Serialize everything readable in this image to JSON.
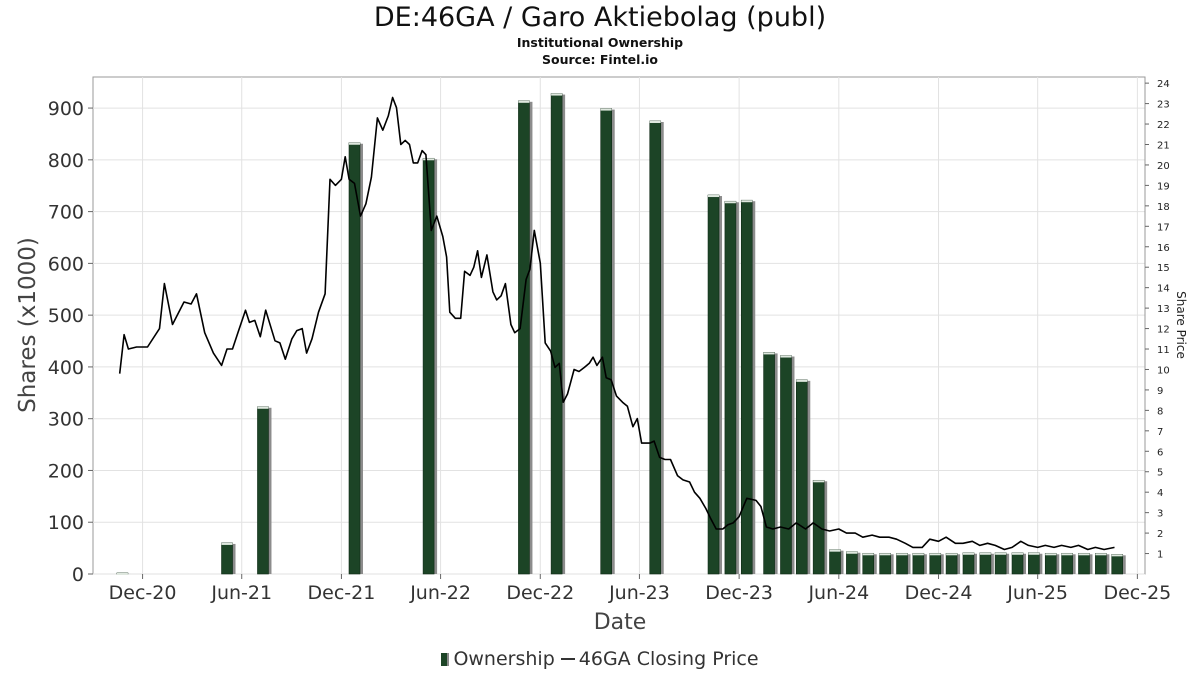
{
  "chart_data": {
    "type": "bar",
    "title": "DE:46GA / Garo Aktiebolag (publ)",
    "subtitle": "Institutional Ownership",
    "source": "Source: Fintel.io",
    "xlabel": "Date",
    "ylabel": "Shares (x1000)",
    "y2label": "Share Price",
    "ylim": [
      0,
      960
    ],
    "y2lim": [
      0,
      24.3
    ],
    "xlim": [
      "2020-09-01",
      "2025-12-15"
    ],
    "yticks": [
      0,
      100,
      200,
      300,
      400,
      500,
      600,
      700,
      800,
      900
    ],
    "y2ticks": [
      1,
      2,
      3,
      4,
      5,
      6,
      7,
      8,
      9,
      10,
      11,
      12,
      13,
      14,
      15,
      16,
      17,
      18,
      19,
      20,
      21,
      22,
      23,
      24
    ],
    "xticks": [
      {
        "label": "Dec-20",
        "date": "2020-12-01"
      },
      {
        "label": "Jun-21",
        "date": "2021-06-01"
      },
      {
        "label": "Dec-21",
        "date": "2021-12-01"
      },
      {
        "label": "Jun-22",
        "date": "2022-06-01"
      },
      {
        "label": "Dec-22",
        "date": "2022-12-01"
      },
      {
        "label": "Jun-23",
        "date": "2023-06-01"
      },
      {
        "label": "Dec-23",
        "date": "2023-12-01"
      },
      {
        "label": "Jun-24",
        "date": "2024-06-01"
      },
      {
        "label": "Dec-24",
        "date": "2024-12-01"
      },
      {
        "label": "Jun-25",
        "date": "2025-06-01"
      },
      {
        "label": "Dec-25",
        "date": "2025-12-01"
      }
    ],
    "grid": true,
    "legend_position": "bottom",
    "series": [
      {
        "name": "Ownership",
        "type": "bar",
        "color": "#1c4426",
        "points": [
          {
            "date": "2020-10-25",
            "value": 2
          },
          {
            "date": "2021-05-05",
            "value": 60
          },
          {
            "date": "2021-07-10",
            "value": 323
          },
          {
            "date": "2021-12-25",
            "value": 833
          },
          {
            "date": "2022-05-10",
            "value": 803
          },
          {
            "date": "2022-11-01",
            "value": 914
          },
          {
            "date": "2022-12-31",
            "value": 928
          },
          {
            "date": "2023-04-01",
            "value": 899
          },
          {
            "date": "2023-06-30",
            "value": 875
          },
          {
            "date": "2023-10-15",
            "value": 732
          },
          {
            "date": "2023-11-15",
            "value": 720
          },
          {
            "date": "2023-12-15",
            "value": 722
          },
          {
            "date": "2024-01-25",
            "value": 428
          },
          {
            "date": "2024-02-25",
            "value": 422
          },
          {
            "date": "2024-03-25",
            "value": 375
          },
          {
            "date": "2024-04-25",
            "value": 181
          },
          {
            "date": "2024-05-25",
            "value": 47
          },
          {
            "date": "2024-06-25",
            "value": 43
          },
          {
            "date": "2024-07-25",
            "value": 40
          },
          {
            "date": "2024-08-25",
            "value": 40
          },
          {
            "date": "2024-09-25",
            "value": 40
          },
          {
            "date": "2024-10-25",
            "value": 40
          },
          {
            "date": "2024-11-25",
            "value": 40
          },
          {
            "date": "2024-12-25",
            "value": 40
          },
          {
            "date": "2025-01-25",
            "value": 41
          },
          {
            "date": "2025-02-25",
            "value": 41
          },
          {
            "date": "2025-03-25",
            "value": 41
          },
          {
            "date": "2025-04-25",
            "value": 41
          },
          {
            "date": "2025-05-25",
            "value": 41
          },
          {
            "date": "2025-06-25",
            "value": 40
          },
          {
            "date": "2025-07-25",
            "value": 40
          },
          {
            "date": "2025-08-25",
            "value": 40
          },
          {
            "date": "2025-09-25",
            "value": 40
          },
          {
            "date": "2025-10-25",
            "value": 38
          }
        ]
      },
      {
        "name": "46GA Closing Price",
        "type": "line",
        "axis": "right",
        "color": "#000000",
        "points": [
          {
            "date": "2020-10-20",
            "value": 9.8
          },
          {
            "date": "2020-10-28",
            "value": 11.7
          },
          {
            "date": "2020-11-05",
            "value": 11.0
          },
          {
            "date": "2020-11-20",
            "value": 11.1
          },
          {
            "date": "2020-12-10",
            "value": 11.1
          },
          {
            "date": "2021-01-01",
            "value": 12.0
          },
          {
            "date": "2021-01-10",
            "value": 14.2
          },
          {
            "date": "2021-01-25",
            "value": 12.2
          },
          {
            "date": "2021-02-15",
            "value": 13.3
          },
          {
            "date": "2021-02-28",
            "value": 13.2
          },
          {
            "date": "2021-03-10",
            "value": 13.7
          },
          {
            "date": "2021-03-25",
            "value": 11.8
          },
          {
            "date": "2021-04-10",
            "value": 10.8
          },
          {
            "date": "2021-04-25",
            "value": 10.2
          },
          {
            "date": "2021-05-05",
            "value": 11.0
          },
          {
            "date": "2021-05-15",
            "value": 11.0
          },
          {
            "date": "2021-05-25",
            "value": 11.8
          },
          {
            "date": "2021-06-08",
            "value": 12.9
          },
          {
            "date": "2021-06-15",
            "value": 12.3
          },
          {
            "date": "2021-06-25",
            "value": 12.4
          },
          {
            "date": "2021-07-05",
            "value": 11.6
          },
          {
            "date": "2021-07-15",
            "value": 12.9
          },
          {
            "date": "2021-08-01",
            "value": 11.4
          },
          {
            "date": "2021-08-10",
            "value": 11.3
          },
          {
            "date": "2021-08-20",
            "value": 10.5
          },
          {
            "date": "2021-09-01",
            "value": 11.5
          },
          {
            "date": "2021-09-10",
            "value": 11.9
          },
          {
            "date": "2021-09-20",
            "value": 12.0
          },
          {
            "date": "2021-09-28",
            "value": 10.8
          },
          {
            "date": "2021-10-08",
            "value": 11.5
          },
          {
            "date": "2021-10-20",
            "value": 12.8
          },
          {
            "date": "2021-11-01",
            "value": 13.7
          },
          {
            "date": "2021-11-10",
            "value": 19.3
          },
          {
            "date": "2021-11-20",
            "value": 19.0
          },
          {
            "date": "2021-12-01",
            "value": 19.3
          },
          {
            "date": "2021-12-08",
            "value": 20.4
          },
          {
            "date": "2021-12-15",
            "value": 19.3
          },
          {
            "date": "2021-12-25",
            "value": 19.1
          },
          {
            "date": "2022-01-05",
            "value": 17.5
          },
          {
            "date": "2022-01-15",
            "value": 18.1
          },
          {
            "date": "2022-01-25",
            "value": 19.4
          },
          {
            "date": "2022-02-05",
            "value": 22.3
          },
          {
            "date": "2022-02-15",
            "value": 21.7
          },
          {
            "date": "2022-02-25",
            "value": 22.4
          },
          {
            "date": "2022-03-05",
            "value": 23.3
          },
          {
            "date": "2022-03-12",
            "value": 22.8
          },
          {
            "date": "2022-03-20",
            "value": 21.0
          },
          {
            "date": "2022-03-28",
            "value": 21.2
          },
          {
            "date": "2022-04-05",
            "value": 21.0
          },
          {
            "date": "2022-04-12",
            "value": 20.1
          },
          {
            "date": "2022-04-20",
            "value": 20.1
          },
          {
            "date": "2022-04-28",
            "value": 20.7
          },
          {
            "date": "2022-05-05",
            "value": 20.5
          },
          {
            "date": "2022-05-15",
            "value": 16.8
          },
          {
            "date": "2022-05-25",
            "value": 17.5
          },
          {
            "date": "2022-06-05",
            "value": 16.5
          },
          {
            "date": "2022-06-12",
            "value": 15.5
          },
          {
            "date": "2022-06-18",
            "value": 12.8
          },
          {
            "date": "2022-06-28",
            "value": 12.5
          },
          {
            "date": "2022-07-08",
            "value": 12.5
          },
          {
            "date": "2022-07-15",
            "value": 14.8
          },
          {
            "date": "2022-07-25",
            "value": 14.6
          },
          {
            "date": "2022-08-01",
            "value": 15.0
          },
          {
            "date": "2022-08-08",
            "value": 15.8
          },
          {
            "date": "2022-08-15",
            "value": 14.5
          },
          {
            "date": "2022-08-25",
            "value": 15.6
          },
          {
            "date": "2022-09-05",
            "value": 13.8
          },
          {
            "date": "2022-09-12",
            "value": 13.4
          },
          {
            "date": "2022-09-20",
            "value": 13.6
          },
          {
            "date": "2022-09-28",
            "value": 14.2
          },
          {
            "date": "2022-10-08",
            "value": 12.2
          },
          {
            "date": "2022-10-15",
            "value": 11.8
          },
          {
            "date": "2022-10-25",
            "value": 12.0
          },
          {
            "date": "2022-11-05",
            "value": 14.4
          },
          {
            "date": "2022-11-12",
            "value": 14.9
          },
          {
            "date": "2022-11-20",
            "value": 16.8
          },
          {
            "date": "2022-12-01",
            "value": 15.2
          },
          {
            "date": "2022-12-10",
            "value": 11.3
          },
          {
            "date": "2022-12-20",
            "value": 10.9
          },
          {
            "date": "2022-12-28",
            "value": 10.1
          },
          {
            "date": "2023-01-05",
            "value": 10.3
          },
          {
            "date": "2023-01-12",
            "value": 8.4
          },
          {
            "date": "2023-01-20",
            "value": 8.8
          },
          {
            "date": "2023-02-01",
            "value": 10.0
          },
          {
            "date": "2023-02-10",
            "value": 9.9
          },
          {
            "date": "2023-02-20",
            "value": 10.1
          },
          {
            "date": "2023-03-01",
            "value": 10.3
          },
          {
            "date": "2023-03-08",
            "value": 10.6
          },
          {
            "date": "2023-03-15",
            "value": 10.2
          },
          {
            "date": "2023-03-25",
            "value": 10.6
          },
          {
            "date": "2023-04-01",
            "value": 9.6
          },
          {
            "date": "2023-04-10",
            "value": 9.5
          },
          {
            "date": "2023-04-20",
            "value": 8.7
          },
          {
            "date": "2023-05-01",
            "value": 8.4
          },
          {
            "date": "2023-05-10",
            "value": 8.2
          },
          {
            "date": "2023-05-20",
            "value": 7.2
          },
          {
            "date": "2023-05-28",
            "value": 7.6
          },
          {
            "date": "2023-06-05",
            "value": 6.4
          },
          {
            "date": "2023-06-12",
            "value": 6.4
          },
          {
            "date": "2023-06-20",
            "value": 6.4
          },
          {
            "date": "2023-06-28",
            "value": 6.5
          },
          {
            "date": "2023-07-08",
            "value": 5.7
          },
          {
            "date": "2023-07-18",
            "value": 5.6
          },
          {
            "date": "2023-07-28",
            "value": 5.6
          },
          {
            "date": "2023-08-10",
            "value": 4.8
          },
          {
            "date": "2023-08-20",
            "value": 4.6
          },
          {
            "date": "2023-09-01",
            "value": 4.5
          },
          {
            "date": "2023-09-10",
            "value": 4.0
          },
          {
            "date": "2023-09-20",
            "value": 3.7
          },
          {
            "date": "2023-10-01",
            "value": 3.2
          },
          {
            "date": "2023-10-10",
            "value": 2.7
          },
          {
            "date": "2023-10-20",
            "value": 2.2
          },
          {
            "date": "2023-11-01",
            "value": 2.2
          },
          {
            "date": "2023-11-10",
            "value": 2.4
          },
          {
            "date": "2023-11-20",
            "value": 2.5
          },
          {
            "date": "2023-12-01",
            "value": 2.8
          },
          {
            "date": "2023-12-15",
            "value": 3.7
          },
          {
            "date": "2024-01-01",
            "value": 3.6
          },
          {
            "date": "2024-01-10",
            "value": 3.3
          },
          {
            "date": "2024-01-20",
            "value": 2.3
          },
          {
            "date": "2024-02-01",
            "value": 2.2
          },
          {
            "date": "2024-02-15",
            "value": 2.3
          },
          {
            "date": "2024-03-01",
            "value": 2.2
          },
          {
            "date": "2024-03-15",
            "value": 2.5
          },
          {
            "date": "2024-04-01",
            "value": 2.2
          },
          {
            "date": "2024-04-15",
            "value": 2.5
          },
          {
            "date": "2024-05-01",
            "value": 2.2
          },
          {
            "date": "2024-05-15",
            "value": 2.1
          },
          {
            "date": "2024-06-01",
            "value": 2.2
          },
          {
            "date": "2024-06-15",
            "value": 2.0
          },
          {
            "date": "2024-07-01",
            "value": 2.0
          },
          {
            "date": "2024-07-15",
            "value": 1.8
          },
          {
            "date": "2024-08-01",
            "value": 1.9
          },
          {
            "date": "2024-08-15",
            "value": 1.8
          },
          {
            "date": "2024-09-01",
            "value": 1.8
          },
          {
            "date": "2024-09-15",
            "value": 1.7
          },
          {
            "date": "2024-10-01",
            "value": 1.5
          },
          {
            "date": "2024-10-15",
            "value": 1.3
          },
          {
            "date": "2024-11-01",
            "value": 1.3
          },
          {
            "date": "2024-11-15",
            "value": 1.7
          },
          {
            "date": "2024-12-01",
            "value": 1.6
          },
          {
            "date": "2024-12-15",
            "value": 1.8
          },
          {
            "date": "2025-01-01",
            "value": 1.5
          },
          {
            "date": "2025-01-15",
            "value": 1.5
          },
          {
            "date": "2025-02-01",
            "value": 1.6
          },
          {
            "date": "2025-02-15",
            "value": 1.4
          },
          {
            "date": "2025-03-01",
            "value": 1.5
          },
          {
            "date": "2025-03-15",
            "value": 1.4
          },
          {
            "date": "2025-04-01",
            "value": 1.2
          },
          {
            "date": "2025-04-15",
            "value": 1.3
          },
          {
            "date": "2025-05-01",
            "value": 1.6
          },
          {
            "date": "2025-05-15",
            "value": 1.4
          },
          {
            "date": "2025-06-01",
            "value": 1.3
          },
          {
            "date": "2025-06-15",
            "value": 1.4
          },
          {
            "date": "2025-07-01",
            "value": 1.3
          },
          {
            "date": "2025-07-15",
            "value": 1.4
          },
          {
            "date": "2025-08-01",
            "value": 1.3
          },
          {
            "date": "2025-08-15",
            "value": 1.4
          },
          {
            "date": "2025-09-01",
            "value": 1.2
          },
          {
            "date": "2025-09-15",
            "value": 1.3
          },
          {
            "date": "2025-10-01",
            "value": 1.2
          },
          {
            "date": "2025-10-20",
            "value": 1.3
          }
        ]
      }
    ]
  }
}
